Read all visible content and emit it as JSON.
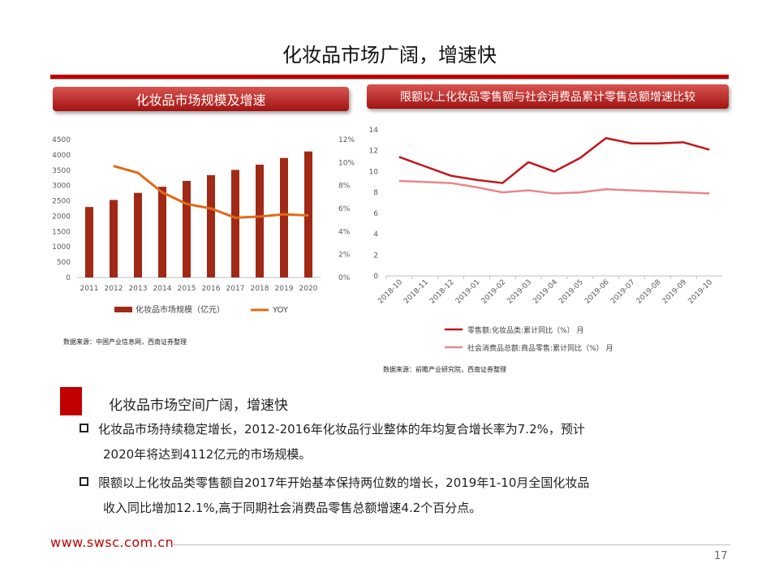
{
  "slide": {
    "title": "化妆品市场广阔，增速快",
    "left_header": "化妆品市场规模及增速",
    "right_header": "限额以上化妆品零售额与社会消费品累计零售总额增速比较",
    "left_source": "数据来源：中国产业信息网，西南证券整理",
    "right_source": "数据来源：前瞻产业研究院，西南证券整理",
    "summary_title": "化妆品市场空间广阔，增速快",
    "bullets": [
      {
        "line1": "化妆品市场持续稳定增长，2012-2016年化妆品行业整体的年均复合增长率为7.2%，预计",
        "line2": "2020年将达到4112亿元的市场规模。"
      },
      {
        "line1": "限额以上化妆品类零售额自2017年开始基本保持两位数的增长，2019年1-10月全国化妆品",
        "line2": "收入同比增加12.1%,高于同期社会消费品零售总额增速4.2个百分点。"
      }
    ],
    "footer_url": "www.swsc.com.cn",
    "page_number": "17",
    "accent_color": "#c00000"
  },
  "chart_data": [
    {
      "type": "bar",
      "categories": [
        "2011",
        "2012",
        "2013",
        "2014",
        "2015",
        "2016",
        "2017",
        "2018",
        "2019",
        "2020"
      ],
      "series": [
        {
          "name": "化妆品市场规模（亿元）",
          "type": "bar",
          "axis": "left",
          "values": [
            2300,
            2530,
            2760,
            2960,
            3150,
            3340,
            3510,
            3680,
            3900,
            4112
          ],
          "color": "#a12a16"
        },
        {
          "name": "YOY",
          "type": "line",
          "axis": "right",
          "values": [
            null,
            9.7,
            9.1,
            7.4,
            6.4,
            6.0,
            5.2,
            5.3,
            5.5,
            5.4
          ],
          "color": "#e06b1a"
        }
      ],
      "ylim_left": [
        0,
        4500
      ],
      "yticks_left": [
        "0",
        "500",
        "1000",
        "1500",
        "2000",
        "2500",
        "3000",
        "3500",
        "4000",
        "4500"
      ],
      "ylim_right": [
        0,
        12
      ],
      "yticks_right": [
        "0%",
        "2%",
        "4%",
        "6%",
        "8%",
        "10%",
        "12%"
      ],
      "legend": "bottom"
    },
    {
      "type": "line",
      "categories": [
        "2018-10",
        "2018-11",
        "2018-12",
        "2019-01",
        "2019-02",
        "2019-03",
        "2019-04",
        "2019-05",
        "2019-06",
        "2019-07",
        "2019-08",
        "2019-09",
        "2019-10"
      ],
      "series": [
        {
          "name": "零售额:化妆品类:累计同比（%） 月",
          "values": [
            11.4,
            10.5,
            9.6,
            9.2,
            8.9,
            10.9,
            10.0,
            11.3,
            13.2,
            12.7,
            12.7,
            12.8,
            12.1
          ],
          "color": "#c0161c"
        },
        {
          "name": "社会消费品总额:商品零售:累计同比（%） 月",
          "values": [
            9.1,
            9.0,
            8.9,
            8.5,
            8.0,
            8.2,
            7.9,
            8.0,
            8.3,
            8.2,
            8.1,
            8.0,
            7.9
          ],
          "color": "#e8878a"
        }
      ],
      "ylim": [
        0,
        14
      ],
      "yticks": [
        "0",
        "2",
        "4",
        "6",
        "8",
        "10",
        "12",
        "14"
      ],
      "legend": "bottom"
    }
  ]
}
